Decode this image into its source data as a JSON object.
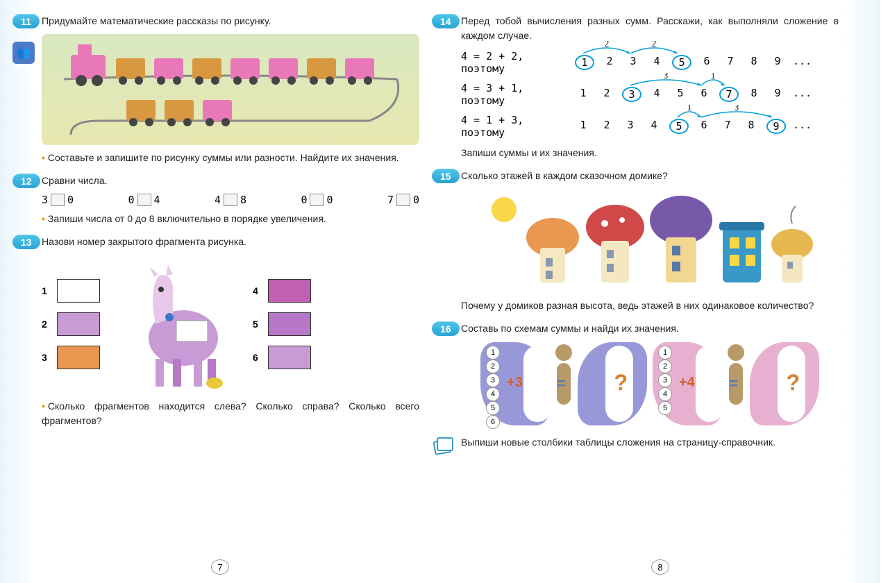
{
  "leftPage": {
    "pageNum": "7",
    "task11": {
      "num": "11",
      "text": "Придумайте математические рассказы по рисунку.",
      "sub": "Составьте и запишите по рисунку суммы или разности. Найдите их значения."
    },
    "task12": {
      "num": "12",
      "text": "Сравни числа.",
      "pairs": [
        {
          "a": "3",
          "b": "0"
        },
        {
          "a": "0",
          "b": "4"
        },
        {
          "a": "4",
          "b": "8"
        },
        {
          "a": "0",
          "b": "0"
        },
        {
          "a": "7",
          "b": "0"
        }
      ],
      "sub": "Запиши числа от 0 до 8 включительно в порядке увеличения."
    },
    "task13": {
      "num": "13",
      "text": "Назови номер закрытого фрагмента рисунка.",
      "fragLeft": [
        "1",
        "2",
        "3"
      ],
      "fragRight": [
        "4",
        "5",
        "6"
      ],
      "sub": "Сколько фрагментов находится слева? Сколько справа? Сколько всего фрагментов?",
      "colors": {
        "f1": "#ffffff",
        "f2": "#c89bd6",
        "f3": "#e89850",
        "f4": "#c060b0",
        "f5": "#b878c8",
        "f6": "#c89bd6"
      }
    }
  },
  "rightPage": {
    "pageNum": "8",
    "task14": {
      "num": "14",
      "text": "Перед тобой вычисления разных сумм. Расскажи, как выполняли сложение в каждом случае.",
      "lines": [
        {
          "eq": "4 = 2 + 2,  поэтому",
          "nums": [
            "1",
            "2",
            "3",
            "4",
            "5",
            "6",
            "7",
            "8",
            "9"
          ],
          "circles": [
            0,
            4
          ],
          "arcs": [
            {
              "from": 0,
              "to": 2,
              "label": "2"
            },
            {
              "from": 2,
              "to": 4,
              "label": "2"
            }
          ]
        },
        {
          "eq": "4 = 3 + 1,  поэтому",
          "nums": [
            "1",
            "2",
            "3",
            "4",
            "5",
            "6",
            "7",
            "8",
            "9"
          ],
          "circles": [
            2,
            6
          ],
          "arcs": [
            {
              "from": 2,
              "to": 5,
              "label": "3"
            },
            {
              "from": 5,
              "to": 6,
              "label": "1"
            }
          ]
        },
        {
          "eq": "4 = 1 + 3,  поэтому",
          "nums": [
            "1",
            "2",
            "3",
            "4",
            "5",
            "6",
            "7",
            "8",
            "9"
          ],
          "circles": [
            4,
            8
          ],
          "arcs": [
            {
              "from": 4,
              "to": 5,
              "label": "1"
            },
            {
              "from": 5,
              "to": 8,
              "label": "3"
            }
          ]
        }
      ],
      "sub": "Запиши суммы и их значения."
    },
    "task15": {
      "num": "15",
      "text": "Сколько этажей в каждом сказочном домике?",
      "sub": "Почему у домиков разная высота, ведь этажей в них одинаковое количество?",
      "houseColors": [
        "#e89850",
        "#d04848",
        "#7858a8",
        "#3898c8",
        "#e8b850"
      ]
    },
    "task16": {
      "num": "16",
      "text": "Составь по схемам суммы и найди их значения.",
      "butterflies": [
        {
          "wingColor": "#9898d8",
          "nums": [
            "1",
            "2",
            "3",
            "4",
            "5",
            "6"
          ],
          "plus": "+3"
        },
        {
          "wingColor": "#e8b0d0",
          "nums": [
            "1",
            "2",
            "3",
            "4",
            "5"
          ],
          "plus": "+4"
        }
      ],
      "sub": "Выпиши новые столбики таблицы сложения на страницу-справочник."
    }
  }
}
